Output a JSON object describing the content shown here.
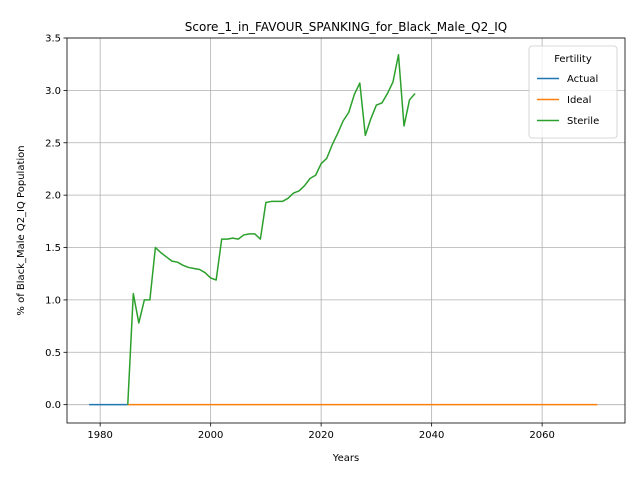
{
  "chart_data": {
    "type": "line",
    "title": "Score_1_in_FAVOUR_SPANKING_for_Black_Male_Q2_IQ",
    "xlabel": "Years",
    "ylabel": "% of Black_Male Q2_IQ Population",
    "xlim": [
      1974,
      2075
    ],
    "ylim": [
      -0.175,
      3.5
    ],
    "xticks": [
      1980,
      2000,
      2020,
      2040,
      2060
    ],
    "yticks": [
      0.0,
      0.5,
      1.0,
      1.5,
      2.0,
      2.5,
      3.0,
      3.5
    ],
    "ytick_labels": [
      "0.0",
      "0.5",
      "1.0",
      "1.5",
      "2.0",
      "2.5",
      "3.0",
      "3.5"
    ],
    "grid": true,
    "legend": {
      "title": "Fertility",
      "placement": "top-right"
    },
    "series": [
      {
        "name": "Actual",
        "color": "#1f77b4",
        "points": [
          [
            1978,
            0.0
          ],
          [
            1985,
            0.0
          ]
        ]
      },
      {
        "name": "Ideal",
        "color": "#ff7f0e",
        "points": [
          [
            1985,
            0.0
          ],
          [
            2070,
            0.0
          ]
        ]
      },
      {
        "name": "Sterile",
        "color": "#2ca02c",
        "points": [
          [
            1985,
            0.0
          ],
          [
            1986,
            1.06
          ],
          [
            1987,
            0.78
          ],
          [
            1988,
            1.0
          ],
          [
            1989,
            1.0
          ],
          [
            1990,
            1.5
          ],
          [
            1991,
            1.45
          ],
          [
            1992,
            1.41
          ],
          [
            1993,
            1.37
          ],
          [
            1994,
            1.36
          ],
          [
            1995,
            1.33
          ],
          [
            1996,
            1.31
          ],
          [
            1997,
            1.3
          ],
          [
            1998,
            1.29
          ],
          [
            1999,
            1.26
          ],
          [
            2000,
            1.21
          ],
          [
            2001,
            1.19
          ],
          [
            2002,
            1.58
          ],
          [
            2003,
            1.58
          ],
          [
            2004,
            1.59
          ],
          [
            2005,
            1.58
          ],
          [
            2006,
            1.62
          ],
          [
            2007,
            1.63
          ],
          [
            2008,
            1.63
          ],
          [
            2009,
            1.58
          ],
          [
            2010,
            1.93
          ],
          [
            2011,
            1.94
          ],
          [
            2012,
            1.94
          ],
          [
            2013,
            1.94
          ],
          [
            2014,
            1.97
          ],
          [
            2015,
            2.02
          ],
          [
            2016,
            2.04
          ],
          [
            2017,
            2.09
          ],
          [
            2018,
            2.16
          ],
          [
            2019,
            2.19
          ],
          [
            2020,
            2.3
          ],
          [
            2021,
            2.35
          ],
          [
            2022,
            2.48
          ],
          [
            2023,
            2.59
          ],
          [
            2024,
            2.71
          ],
          [
            2025,
            2.79
          ],
          [
            2026,
            2.96
          ],
          [
            2027,
            3.07
          ],
          [
            2028,
            2.57
          ],
          [
            2029,
            2.73
          ],
          [
            2030,
            2.86
          ],
          [
            2031,
            2.88
          ],
          [
            2032,
            2.97
          ],
          [
            2033,
            3.08
          ],
          [
            2034,
            3.34
          ],
          [
            2035,
            2.66
          ],
          [
            2036,
            2.91
          ],
          [
            2037,
            2.97
          ]
        ]
      }
    ]
  }
}
